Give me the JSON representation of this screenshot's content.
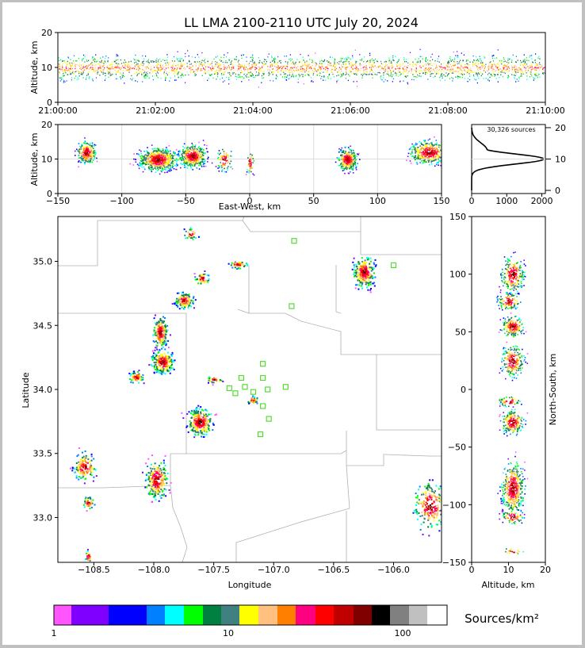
{
  "title": "LL LMA 2100-2110 UTC July 20, 2024",
  "time_panel": {
    "ylabel": "Altitude, km",
    "yticks": [
      "0",
      "10",
      "20"
    ],
    "xticks": [
      "21:00:00",
      "21:02:00",
      "21:04:00",
      "21:06:00",
      "21:08:00",
      "21:10:00"
    ]
  },
  "ew_panel": {
    "ylabel": "Altitude, km",
    "xlabel": "East-West, km",
    "xticks": [
      "−150",
      "−100",
      "−50",
      "0",
      "50",
      "100",
      "150"
    ],
    "yticks": [
      "0",
      "10",
      "20"
    ]
  },
  "hist_panel": {
    "sources_label": "30,326 sources",
    "xticks": [
      "0",
      "1000",
      "2000"
    ],
    "yticks": [
      "0",
      "10",
      "20"
    ]
  },
  "plan_panel": {
    "xlabel": "Longitude",
    "ylabel": "Latitude",
    "xticks": [
      "−108.5",
      "−108.0",
      "−107.5",
      "−107.0",
      "−106.5",
      "−106.0"
    ],
    "yticks": [
      "33.0",
      "33.5",
      "34.0",
      "34.5",
      "35.0"
    ]
  },
  "ns_panel": {
    "xlabel": "Altitude, km",
    "ylabel": "North-South, km",
    "xticks": [
      "0",
      "10",
      "20"
    ],
    "yticks": [
      "−150",
      "−100",
      "−50",
      "0",
      "50",
      "100",
      "150"
    ]
  },
  "colorbar": {
    "label": "Sources/km²",
    "ticks": [
      "1",
      "10",
      "100"
    ],
    "colors": [
      "#ff55ff",
      "#8000ff",
      "#0000ff",
      "#0080ff",
      "#00ffff",
      "#00ff00",
      "#008040",
      "#408080",
      "#ffff00",
      "#ffc080",
      "#ff8000",
      "#ff0080",
      "#ff0000",
      "#c00000",
      "#800000",
      "#000000",
      "#808080",
      "#c0c0c0",
      "#ffffff"
    ]
  },
  "chart_data": {
    "type": "scatter",
    "title": "LL LMA 2100-2110 UTC July 20, 2024",
    "total_sources": 30326,
    "panels": [
      {
        "name": "altitude-time",
        "x_range": [
          "21:00:00",
          "21:10:00"
        ],
        "ylim": [
          0,
          20
        ],
        "ylabel": "Altitude, km"
      },
      {
        "name": "altitude-east-west",
        "xlim": [
          -150,
          150
        ],
        "ylim": [
          0,
          20
        ],
        "xlabel": "East-West, km",
        "ylabel": "Altitude, km"
      },
      {
        "name": "altitude-histogram",
        "xlim": [
          0,
          2100
        ],
        "ylim": [
          0,
          20
        ],
        "peak_altitude_km": 10,
        "peak_count": 2050
      },
      {
        "name": "plan-view",
        "xlim": [
          -108.8,
          -105.6
        ],
        "ylim": [
          32.65,
          35.35
        ],
        "xlabel": "Longitude",
        "ylabel": "Latitude"
      },
      {
        "name": "north-south-altitude",
        "xlim": [
          0,
          20
        ],
        "ylim": [
          -150,
          150
        ],
        "xlabel": "Altitude, km",
        "ylabel": "North-South, km"
      }
    ],
    "stations": [
      {
        "lon": -106.83,
        "lat": 35.16
      },
      {
        "lon": -106.0,
        "lat": 34.97
      },
      {
        "lon": -106.85,
        "lat": 34.65
      },
      {
        "lon": -107.09,
        "lat": 34.2
      },
      {
        "lon": -107.27,
        "lat": 34.09
      },
      {
        "lon": -107.09,
        "lat": 34.09
      },
      {
        "lon": -107.37,
        "lat": 34.01
      },
      {
        "lon": -107.24,
        "lat": 34.02
      },
      {
        "lon": -106.9,
        "lat": 34.02
      },
      {
        "lon": -107.32,
        "lat": 33.97
      },
      {
        "lon": -107.17,
        "lat": 33.98
      },
      {
        "lon": -107.05,
        "lat": 34.0
      },
      {
        "lon": -107.09,
        "lat": 33.87
      },
      {
        "lon": -107.04,
        "lat": 33.77
      },
      {
        "lon": -107.11,
        "lat": 33.65
      }
    ],
    "storm_cells": [
      {
        "lon": -106.25,
        "lat": 34.92,
        "ew_km": 75,
        "ns_km": 100
      },
      {
        "lon": -107.75,
        "lat": 34.7,
        "ew_km": -72,
        "ns_km": 77
      },
      {
        "lon": -107.95,
        "lat": 34.45,
        "ew_km": -85,
        "ns_km": 50
      },
      {
        "lon": -107.93,
        "lat": 34.22,
        "ew_km": -75,
        "ns_km": 25
      },
      {
        "lon": -107.62,
        "lat": 33.75,
        "ew_km": -40,
        "ns_km": -25
      },
      {
        "lon": -107.98,
        "lat": 33.3,
        "ew_km": -70,
        "ns_km": -80
      },
      {
        "lon": -108.58,
        "lat": 33.4,
        "ew_km": -130,
        "ns_km": -85
      },
      {
        "lon": -105.7,
        "lat": 33.1,
        "ew_km": 140,
        "ns_km": -95
      }
    ]
  }
}
